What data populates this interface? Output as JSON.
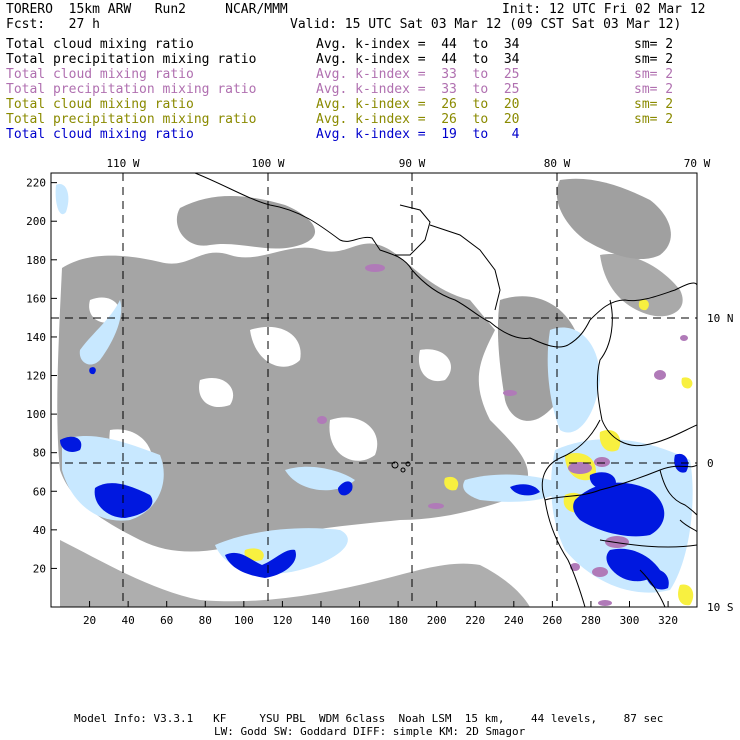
{
  "header": {
    "left1": "TORERO  15km ARW   Run2     NCAR/MMM",
    "right1": "Init: 12 UTC Fri 02 Mar 12",
    "left2": "Fcst:   27 h",
    "right2": "Valid: 15 UTC Sat 03 Mar 12 (09 CST Sat 03 Mar 12)"
  },
  "fields": [
    {
      "name": "Total cloud mixing ratio",
      "avg": "Avg. k-index =  44  to  34",
      "sm": "sm= 2",
      "color": "#000000"
    },
    {
      "name": "Total precipitation mixing ratio",
      "avg": "Avg. k-index =  44  to  34",
      "sm": "sm= 2",
      "color": "#000000"
    },
    {
      "name": "Total cloud mixing ratio",
      "avg": "Avg. k-index =  33  to  25",
      "sm": "sm= 2",
      "color": "#b070b0"
    },
    {
      "name": "Total precipitation mixing ratio",
      "avg": "Avg. k-index =  33  to  25",
      "sm": "sm= 2",
      "color": "#b070b0"
    },
    {
      "name": "Total cloud mixing ratio",
      "avg": "Avg. k-index =  26  to  20",
      "sm": "sm= 2",
      "color": "#8a8a00"
    },
    {
      "name": "Total precipitation mixing ratio",
      "avg": "Avg. k-index =  26  to  20",
      "sm": "sm= 2",
      "color": "#8a8a00"
    },
    {
      "name": "Total cloud mixing ratio",
      "avg": "Avg. k-index =  19  to   4",
      "sm": "",
      "color": "#0000cc"
    }
  ],
  "map": {
    "lon_labels": [
      "110 W",
      "100 W",
      "90 W",
      "80 W",
      "70 W"
    ],
    "lat_labels": [
      "10 N",
      "0",
      "10 S"
    ],
    "x_ticks": [
      "20",
      "40",
      "60",
      "80",
      "100",
      "120",
      "140",
      "160",
      "180",
      "200",
      "220",
      "240",
      "260",
      "280",
      "300",
      "320"
    ],
    "y_ticks": [
      "220",
      "200",
      "180",
      "160",
      "140",
      "120",
      "100",
      "80",
      "60",
      "40",
      "20"
    ],
    "colors": {
      "gray": "#a0a0a0",
      "lightblue": "#c8e8ff",
      "blue": "#0018e0",
      "purple": "#b07ab8",
      "yellow": "#f8f040"
    }
  },
  "footer": {
    "line1": "Model Info: V3.3.1   KF     YSU PBL  WDM 6class  Noah LSM  15 km,    44 levels,    87 sec",
    "line2": "LW: Godd SW: Goddard DIFF: simple KM: 2D Smagor"
  }
}
